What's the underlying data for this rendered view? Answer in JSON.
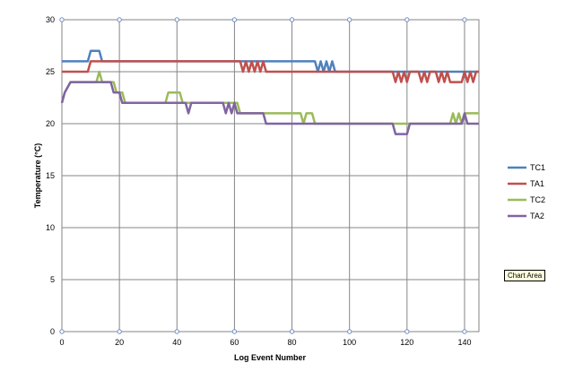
{
  "chart_data": {
    "type": "line",
    "xlabel": "Log Event Number",
    "ylabel": "Temperature (°C)",
    "xlim": [
      0,
      145
    ],
    "ylim": [
      0,
      30
    ],
    "xticks": [
      0,
      20,
      40,
      60,
      80,
      100,
      120,
      140
    ],
    "yticks": [
      0,
      5,
      10,
      15,
      20,
      25,
      30
    ],
    "grid": true,
    "legend_position": "right",
    "series": [
      {
        "name": "TC1",
        "color": "#4f81bd",
        "points": [
          [
            0,
            26
          ],
          [
            9,
            26
          ],
          [
            10,
            27
          ],
          [
            13,
            27
          ],
          [
            14,
            26
          ],
          [
            88,
            26
          ],
          [
            89,
            25
          ],
          [
            90,
            26
          ],
          [
            91,
            25
          ],
          [
            92,
            26
          ],
          [
            93,
            25
          ],
          [
            94,
            26
          ],
          [
            95,
            25
          ],
          [
            145,
            25
          ]
        ]
      },
      {
        "name": "TA1",
        "color": "#c0504d",
        "points": [
          [
            0,
            25
          ],
          [
            9,
            25
          ],
          [
            10,
            26
          ],
          [
            62,
            26
          ],
          [
            63,
            25
          ],
          [
            64,
            26
          ],
          [
            65,
            25
          ],
          [
            66,
            26
          ],
          [
            67,
            25
          ],
          [
            68,
            26
          ],
          [
            69,
            25
          ],
          [
            70,
            26
          ],
          [
            71,
            25
          ],
          [
            115,
            25
          ],
          [
            116,
            24
          ],
          [
            117,
            25
          ],
          [
            118,
            24
          ],
          [
            119,
            25
          ],
          [
            120,
            24
          ],
          [
            121,
            25
          ],
          [
            124,
            25
          ],
          [
            125,
            24
          ],
          [
            126,
            25
          ],
          [
            127,
            24
          ],
          [
            128,
            25
          ],
          [
            130,
            25
          ],
          [
            131,
            24
          ],
          [
            132,
            25
          ],
          [
            133,
            24
          ],
          [
            134,
            25
          ],
          [
            135,
            24
          ],
          [
            139,
            24
          ],
          [
            140,
            25
          ],
          [
            141,
            24
          ],
          [
            142,
            25
          ],
          [
            143,
            24
          ],
          [
            144,
            25
          ],
          [
            145,
            25
          ]
        ]
      },
      {
        "name": "TC2",
        "color": "#9bbb59",
        "points": [
          [
            0,
            22
          ],
          [
            1,
            23
          ],
          [
            3,
            24
          ],
          [
            12,
            24
          ],
          [
            13,
            25
          ],
          [
            14,
            24
          ],
          [
            18,
            24
          ],
          [
            19,
            23
          ],
          [
            21,
            23
          ],
          [
            22,
            22
          ],
          [
            36,
            22
          ],
          [
            37,
            23
          ],
          [
            41,
            23
          ],
          [
            42,
            22
          ],
          [
            61,
            22
          ],
          [
            62,
            21
          ],
          [
            83,
            21
          ],
          [
            84,
            20
          ],
          [
            85,
            21
          ],
          [
            87,
            21
          ],
          [
            88,
            20
          ],
          [
            135,
            20
          ],
          [
            136,
            21
          ],
          [
            137,
            20
          ],
          [
            138,
            21
          ],
          [
            139,
            20
          ],
          [
            140,
            21
          ],
          [
            145,
            21
          ]
        ]
      },
      {
        "name": "TA2",
        "color": "#8064a2",
        "points": [
          [
            0,
            22
          ],
          [
            1,
            23
          ],
          [
            3,
            24
          ],
          [
            17,
            24
          ],
          [
            18,
            23
          ],
          [
            20,
            23
          ],
          [
            21,
            22
          ],
          [
            43,
            22
          ],
          [
            44,
            21
          ],
          [
            45,
            22
          ],
          [
            56,
            22
          ],
          [
            57,
            21
          ],
          [
            58,
            22
          ],
          [
            59,
            21
          ],
          [
            60,
            22
          ],
          [
            61,
            21
          ],
          [
            70,
            21
          ],
          [
            71,
            20
          ],
          [
            115,
            20
          ],
          [
            116,
            19
          ],
          [
            120,
            19
          ],
          [
            121,
            20
          ],
          [
            139,
            20
          ],
          [
            140,
            21
          ],
          [
            141,
            20
          ],
          [
            145,
            20
          ]
        ]
      }
    ]
  },
  "tooltip": "Chart Area"
}
